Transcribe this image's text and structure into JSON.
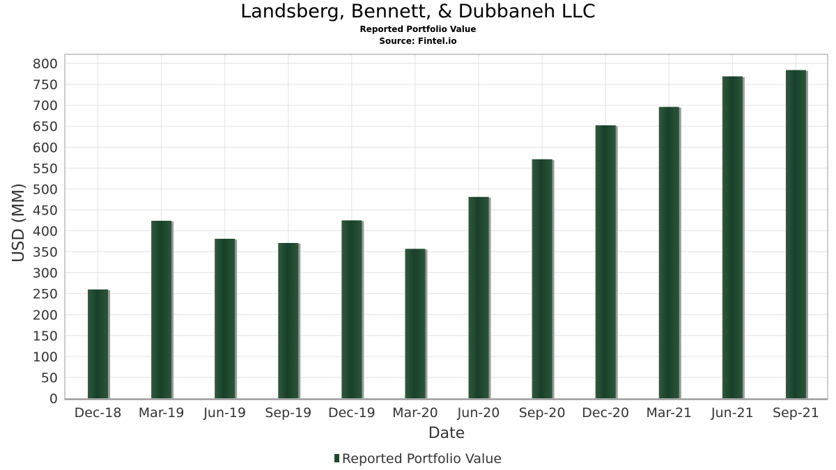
{
  "chart_data": {
    "type": "bar",
    "title": "Landsberg, Bennett, & Dubbaneh LLC",
    "subtitle": "Reported Portfolio Value",
    "source": "Source: Fintel.io",
    "xlabel": "Date",
    "ylabel": "USD (MM)",
    "ylim": [
      0,
      820
    ],
    "yticks": [
      0,
      50,
      100,
      150,
      200,
      250,
      300,
      350,
      400,
      450,
      500,
      550,
      600,
      650,
      700,
      750,
      800
    ],
    "grid": true,
    "legend_position": "bottom",
    "categories": [
      "Dec-18",
      "Mar-19",
      "Jun-19",
      "Sep-19",
      "Dec-19",
      "Mar-20",
      "Jun-20",
      "Sep-20",
      "Dec-20",
      "Mar-21",
      "Jun-21",
      "Sep-21"
    ],
    "series": [
      {
        "name": "Reported Portfolio Value",
        "color": "#1e4a2c",
        "values": [
          260,
          424,
          381,
          371,
          425,
          357,
          481,
          571,
          652,
          696,
          769,
          784
        ]
      }
    ]
  }
}
